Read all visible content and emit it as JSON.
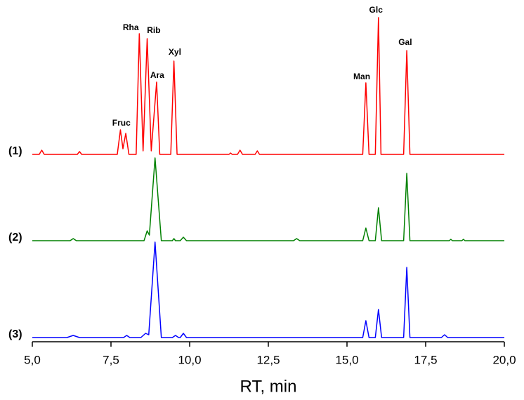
{
  "chart_data": {
    "type": "line",
    "xlabel": "RT, min",
    "xlim": [
      5.0,
      20.0
    ],
    "xticks": [
      {
        "value": 5.0,
        "label": "5,0"
      },
      {
        "value": 7.5,
        "label": "7,5"
      },
      {
        "value": 10.0,
        "label": "10,0"
      },
      {
        "value": 12.5,
        "label": "12,5"
      },
      {
        "value": 15.0,
        "label": "15,0"
      },
      {
        "value": 17.5,
        "label": "17,5"
      },
      {
        "value": 20.0,
        "label": "20,0"
      }
    ],
    "series": [
      {
        "name": "(1)",
        "color": "#ff0000",
        "x": [
          5.0,
          5.22,
          5.3,
          5.38,
          6.43,
          6.5,
          6.57,
          7.7,
          7.8,
          7.88,
          7.97,
          8.07,
          8.3,
          8.4,
          8.52,
          8.65,
          8.78,
          8.95,
          9.05,
          9.4,
          9.5,
          9.6,
          11.25,
          11.3,
          11.35,
          11.52,
          11.6,
          11.68,
          12.08,
          12.15,
          12.22,
          15.5,
          15.6,
          15.7,
          15.9,
          16.0,
          16.08,
          16.8,
          16.9,
          17.0,
          20.0
        ],
        "values": [
          0,
          0,
          6,
          0,
          0,
          4,
          0,
          0,
          35,
          8,
          30,
          0,
          0,
          172,
          5,
          165,
          5,
          103,
          0,
          0,
          133,
          0,
          0,
          2,
          0,
          0,
          6,
          0,
          0,
          5,
          0,
          0,
          102,
          0,
          0,
          195,
          0,
          0,
          148,
          0,
          0
        ]
      },
      {
        "name": "(2)",
        "color": "#008000",
        "x": [
          5.0,
          6.2,
          6.3,
          6.4,
          8.55,
          8.65,
          8.72,
          8.9,
          9.1,
          9.45,
          9.5,
          9.55,
          9.7,
          9.8,
          9.9,
          13.3,
          13.4,
          13.5,
          15.5,
          15.6,
          15.7,
          15.9,
          16.0,
          16.1,
          16.8,
          16.9,
          17.0,
          18.25,
          18.3,
          18.35,
          18.65,
          18.7,
          18.75,
          20.0
        ],
        "values": [
          0,
          0,
          3,
          0,
          0,
          14,
          8,
          118,
          0,
          0,
          3,
          0,
          0,
          5,
          0,
          0,
          3,
          0,
          0,
          18,
          0,
          0,
          47,
          0,
          0,
          96,
          0,
          0,
          2,
          0,
          0,
          2,
          0,
          0
        ]
      },
      {
        "name": "(3)",
        "color": "#0000ff",
        "x": [
          5.0,
          6.1,
          6.3,
          6.5,
          7.9,
          8.0,
          8.1,
          8.45,
          8.6,
          8.7,
          8.9,
          9.1,
          9.45,
          9.55,
          9.65,
          9.7,
          9.8,
          9.9,
          15.5,
          15.6,
          15.7,
          15.9,
          16.0,
          16.1,
          16.8,
          16.9,
          17.0,
          18.0,
          18.1,
          18.2,
          20.0
        ],
        "values": [
          0,
          0,
          3,
          0,
          0,
          3,
          0,
          0,
          6,
          4,
          136,
          0,
          0,
          3,
          0,
          0,
          6,
          0,
          0,
          24,
          0,
          0,
          40,
          0,
          0,
          100,
          0,
          0,
          4,
          0,
          0
        ]
      }
    ],
    "annotations": [
      {
        "text": "Fruc",
        "x": 7.83,
        "y": 44
      },
      {
        "text": "Rha",
        "x": 8.13,
        "y": 180
      },
      {
        "text": "Rib",
        "x": 8.86,
        "y": 176
      },
      {
        "text": "Ara",
        "x": 8.97,
        "y": 112
      },
      {
        "text": "Xyl",
        "x": 9.53,
        "y": 145
      },
      {
        "text": "Man",
        "x": 15.47,
        "y": 110
      },
      {
        "text": "Glc",
        "x": 15.92,
        "y": 205
      },
      {
        "text": "Gal",
        "x": 16.85,
        "y": 159
      }
    ]
  }
}
